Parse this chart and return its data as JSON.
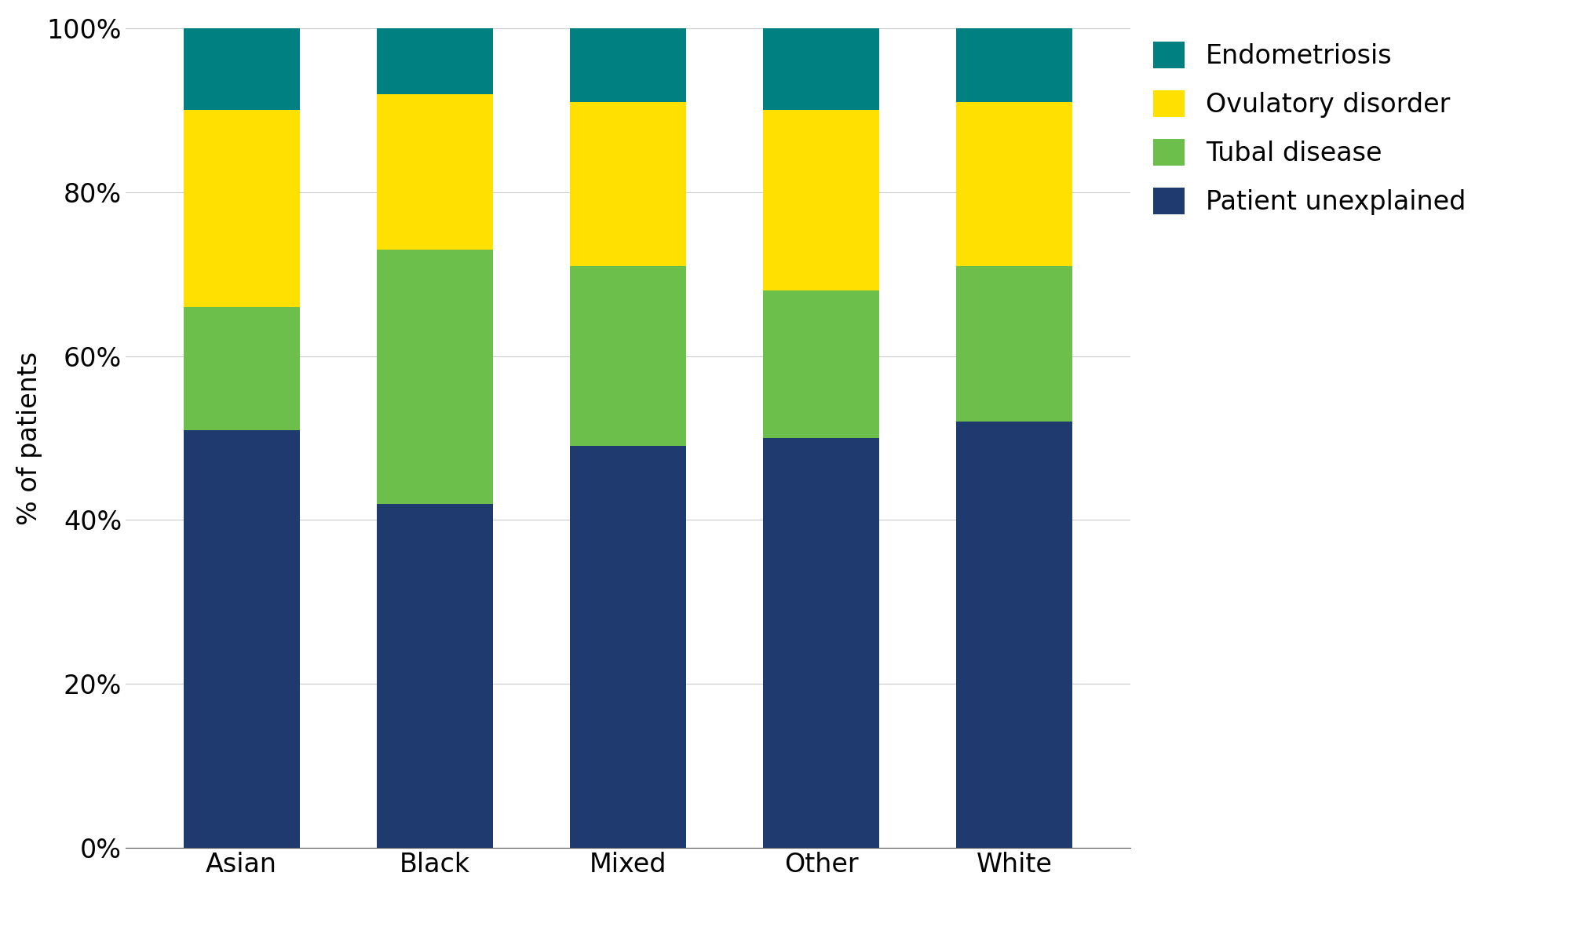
{
  "categories": [
    "Asian",
    "Black",
    "Mixed",
    "Other",
    "White"
  ],
  "series": [
    {
      "label": "Patient unexplained",
      "color": "#1f3a6e",
      "values": [
        51,
        42,
        49,
        50,
        52
      ]
    },
    {
      "label": "Tubal disease",
      "color": "#6dbf4b",
      "values": [
        15,
        31,
        22,
        18,
        19
      ]
    },
    {
      "label": "Ovulatory disorder",
      "color": "#ffe000",
      "values": [
        24,
        19,
        20,
        22,
        20
      ]
    },
    {
      "label": "Endometriosis",
      "color": "#008080",
      "values": [
        10,
        8,
        9,
        10,
        9
      ]
    }
  ],
  "ylabel": "% of patients",
  "ylim": [
    0,
    100
  ],
  "yticks": [
    0,
    20,
    40,
    60,
    80,
    100
  ],
  "ytick_labels": [
    "0%",
    "20%",
    "40%",
    "60%",
    "80%",
    "100%"
  ],
  "legend_order": [
    3,
    2,
    1,
    0
  ],
  "background_color": "#ffffff",
  "bar_width": 0.6,
  "ylabel_fontsize": 24,
  "tick_fontsize": 24,
  "legend_fontsize": 24
}
